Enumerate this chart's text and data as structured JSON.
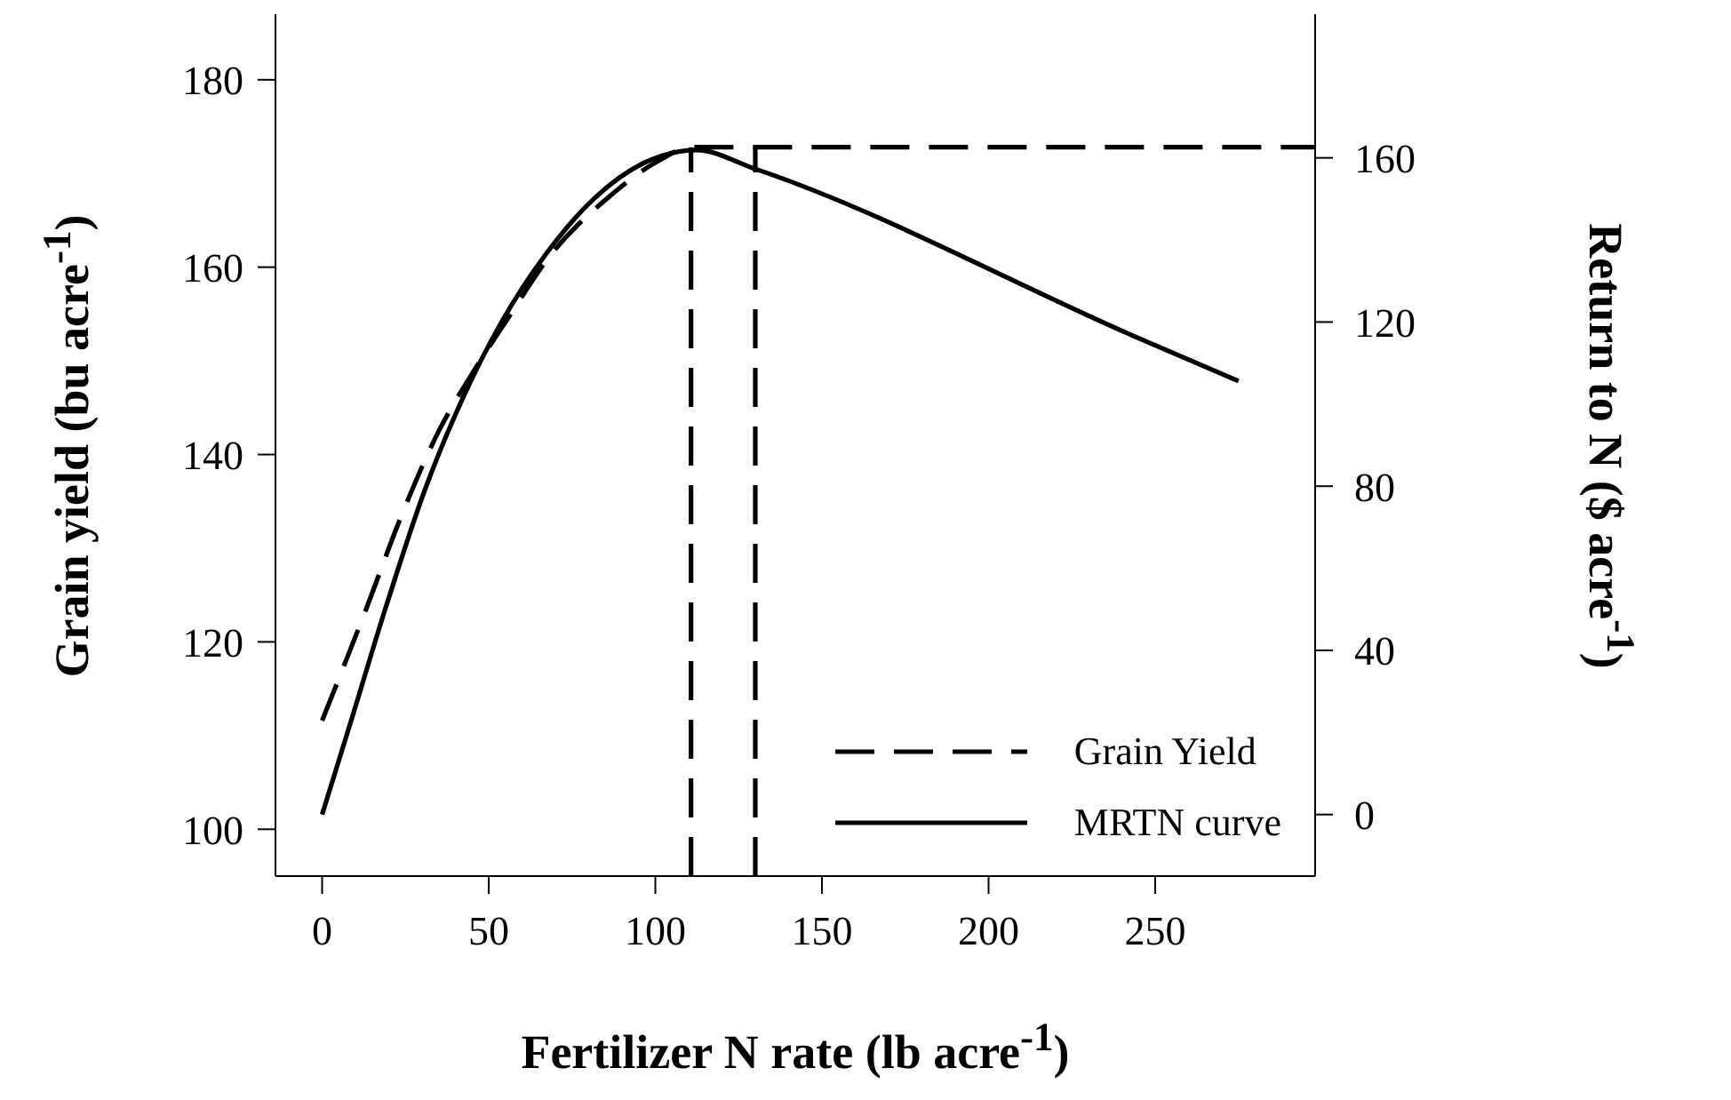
{
  "chart_data": {
    "type": "line",
    "xlabel": "Fertilizer N rate (lb acre$^{-1}$)",
    "ylabel": "Grain yield (bu acre$^{-1}$)",
    "y2label": "Return to N ($ acre$^{-1}$)",
    "xlim": [
      -14,
      298
    ],
    "xticks": [
      0,
      50,
      100,
      150,
      200,
      250
    ],
    "ylim": [
      95,
      187
    ],
    "yticks": [
      100,
      120,
      140,
      160,
      180
    ],
    "y2lim": [
      -15,
      195
    ],
    "y2ticks": [
      0,
      40,
      80,
      120,
      160
    ],
    "series": [
      {
        "name": "Grain Yield",
        "color": "#000000",
        "line_style": "dashed",
        "x": [
          0,
          13.1,
          23.4,
          35,
          45.3,
          55.5,
          68.6,
          86.1,
          100.7,
          110.7,
          298
        ],
        "values": [
          111.6,
          123.4,
          133.1,
          142.5,
          148.8,
          154.4,
          161.3,
          167.5,
          171.3,
          172.8,
          172.8
        ]
      },
      {
        "name": "MRTN curve",
        "color": "#000000",
        "line_style": "solid",
        "axis": "y2",
        "x": [
          0,
          8.8,
          19,
          30.7,
          42.3,
          54,
          67.2,
          81.8,
          96.4,
          112.4,
          130,
          245.5,
          275
        ],
        "values": [
          0,
          23.1,
          50.2,
          78.8,
          101.6,
          120.2,
          136.6,
          150.2,
          158.7,
          161.9,
          157.3,
          115.9,
          105.6
        ]
      }
    ],
    "ref_lines": [
      {
        "axis": "x",
        "value": 110.7,
        "line_style": "dashed",
        "color": "#000000"
      },
      {
        "axis": "x",
        "value": 130,
        "line_style": "dashed",
        "color": "#000000"
      }
    ],
    "legend": "bottom right",
    "grid": false,
    "marker": "none"
  }
}
